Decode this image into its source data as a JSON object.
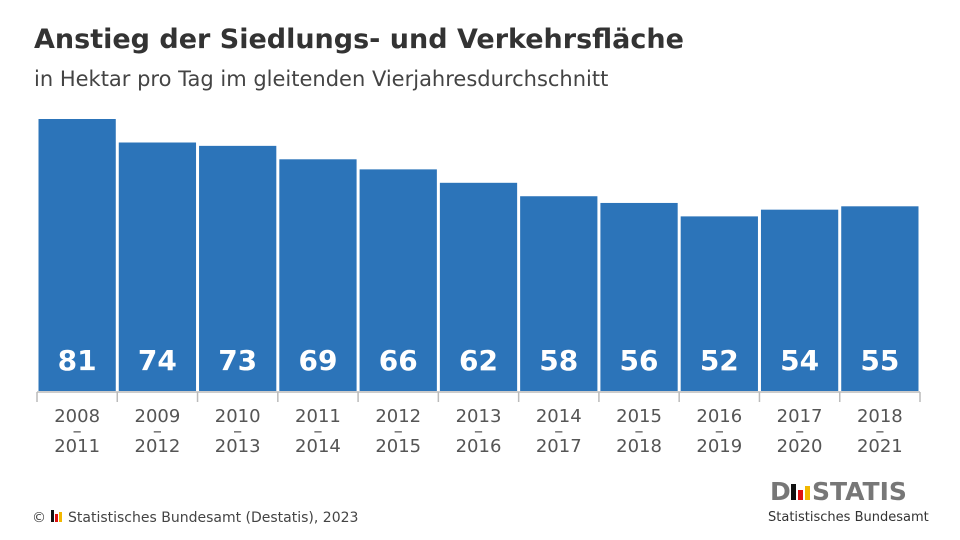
{
  "chart_data": {
    "type": "bar",
    "title": "Anstieg der Siedlungs- und Verkehrsfläche",
    "subtitle": "in Hektar pro Tag im gleitenden Vierjahresdurchschnitt",
    "categories": [
      "2008 – 2011",
      "2009 – 2012",
      "2010 – 2013",
      "2011 – 2014",
      "2012 – 2015",
      "2013 – 2016",
      "2014 – 2017",
      "2015 – 2018",
      "2016 – 2019",
      "2017 – 2020",
      "2018 – 2021"
    ],
    "values": [
      81,
      74,
      73,
      69,
      66,
      62,
      58,
      56,
      52,
      54,
      55
    ],
    "color": "#2c74b9",
    "source": "Statistisches Bundesamt (Destatis), 2023",
    "logo_left": "D",
    "logo_right": "STATIS",
    "logo_sub": "Statistisches Bundesamt"
  }
}
